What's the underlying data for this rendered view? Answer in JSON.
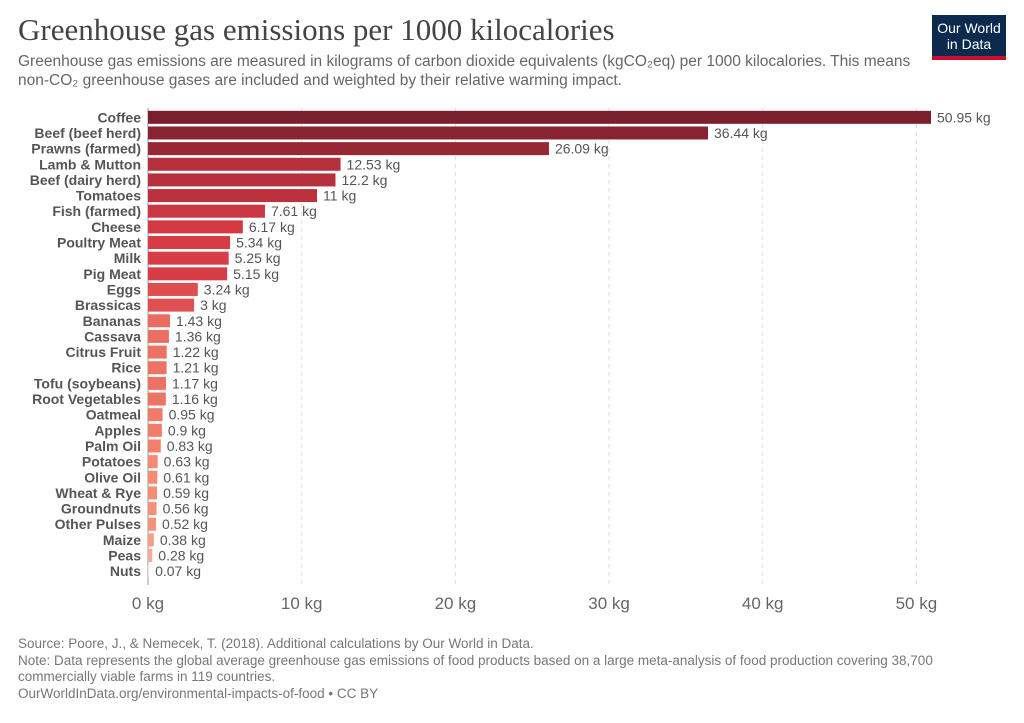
{
  "title": "Greenhouse gas emissions per 1000 kilocalories",
  "subtitle": "Greenhouse gas emissions are measured in kilograms of carbon dioxide equivalents (kgCO₂eq) per 1000 kilocalories. This means non-CO₂ greenhouse gases are included and weighted by their relative warming impact.",
  "logo": {
    "line1": "Our World",
    "line2": "in Data",
    "bg_color": "#0b2a4e",
    "accent_color": "#c8102e"
  },
  "chart_data": {
    "type": "bar",
    "orientation": "horizontal",
    "categories": [
      "Coffee",
      "Beef (beef herd)",
      "Prawns (farmed)",
      "Lamb & Mutton",
      "Beef (dairy herd)",
      "Tomatoes",
      "Fish (farmed)",
      "Cheese",
      "Poultry Meat",
      "Milk",
      "Pig Meat",
      "Eggs",
      "Brassicas",
      "Bananas",
      "Cassava",
      "Citrus Fruit",
      "Rice",
      "Tofu (soybeans)",
      "Root Vegetables",
      "Oatmeal",
      "Apples",
      "Palm Oil",
      "Potatoes",
      "Olive Oil",
      "Wheat & Rye",
      "Groundnuts",
      "Other Pulses",
      "Maize",
      "Peas",
      "Nuts"
    ],
    "values": [
      50.95,
      36.44,
      26.09,
      12.53,
      12.2,
      11,
      7.61,
      6.17,
      5.34,
      5.25,
      5.15,
      3.24,
      3,
      1.43,
      1.36,
      1.22,
      1.21,
      1.17,
      1.16,
      0.95,
      0.9,
      0.83,
      0.63,
      0.61,
      0.59,
      0.56,
      0.52,
      0.38,
      0.28,
      0.07
    ],
    "value_labels": [
      "50.95 kg",
      "36.44 kg",
      "26.09 kg",
      "12.53 kg",
      "12.2 kg",
      "11 kg",
      "7.61 kg",
      "6.17 kg",
      "5.34 kg",
      "5.25 kg",
      "5.15 kg",
      "3.24 kg",
      "3 kg",
      "1.43 kg",
      "1.36 kg",
      "1.22 kg",
      "1.21 kg",
      "1.17 kg",
      "1.16 kg",
      "0.95 kg",
      "0.9 kg",
      "0.83 kg",
      "0.63 kg",
      "0.61 kg",
      "0.59 kg",
      "0.56 kg",
      "0.52 kg",
      "0.38 kg",
      "0.28 kg",
      "0.07 kg"
    ],
    "xlim": [
      0,
      56
    ],
    "x_ticks": [
      0,
      10,
      20,
      30,
      40,
      50
    ],
    "x_tick_labels": [
      "0 kg",
      "10 kg",
      "20 kg",
      "30 kg",
      "40 kg",
      "50 kg"
    ],
    "grid": "vertical dashed",
    "color_scale": [
      "#7b1f2f",
      "#d63a44",
      "#f58a70",
      "#fde1d6"
    ]
  },
  "footer": {
    "source": "Source: Poore, J., & Nemecek, T. (2018). Additional calculations by Our World in Data.",
    "note": "Note: Data represents the global average greenhouse gas emissions of food products based on a large meta-analysis of food production covering 38,700 commercially viable farms in 119 countries.",
    "url": "OurWorldInData.org/environmental-impacts-of-food • CC BY"
  }
}
